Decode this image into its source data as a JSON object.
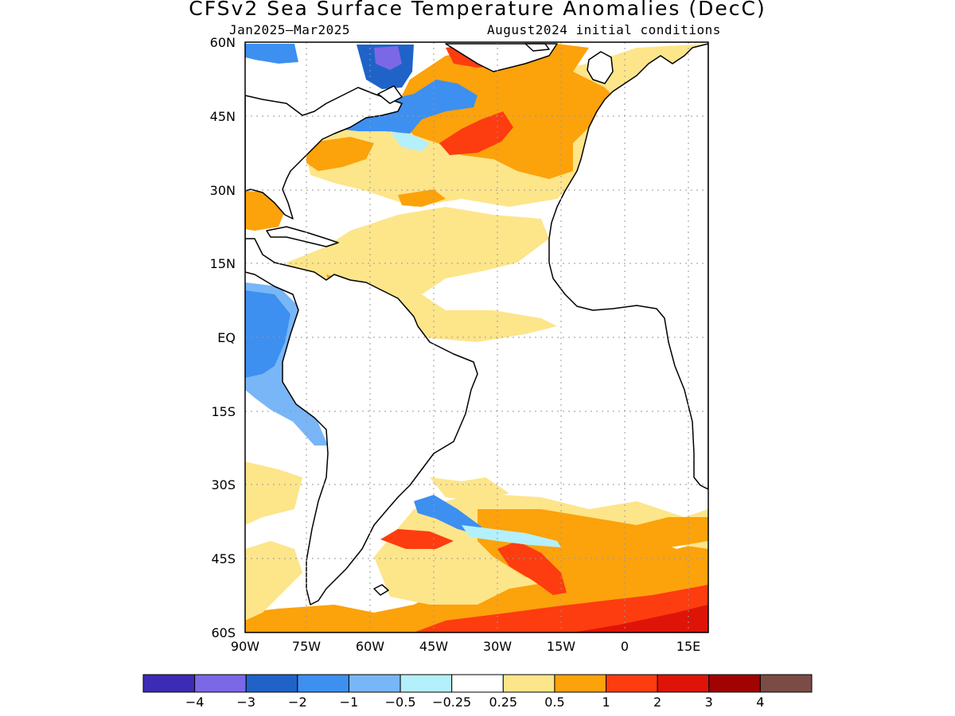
{
  "title": "CFSv2 Sea Surface Temperature Anomalies (DecC)",
  "subtitle_left": "Jan2025–Mar2025",
  "subtitle_right": "August2024 initial conditions",
  "lat_ticks": [
    "60N",
    "45N",
    "30N",
    "15N",
    "EQ",
    "15S",
    "30S",
    "45S",
    "60S"
  ],
  "lon_ticks": [
    "90W",
    "75W",
    "60W",
    "45W",
    "30W",
    "15W",
    "0",
    "15E"
  ],
  "colorbar": {
    "colors": [
      "#3c2cb5",
      "#7b68e6",
      "#1f63c8",
      "#3d8ff0",
      "#78b6f7",
      "#b3f0fb",
      "#ffffff",
      "#fde58a",
      "#fca20b",
      "#fd3c0f",
      "#de1408",
      "#a10302",
      "#7b4c45"
    ],
    "labels": [
      "−4",
      "−3",
      "−2",
      "−1",
      "−0.5",
      "−0.25",
      "0.25",
      "0.5",
      "1",
      "2",
      "3",
      "4"
    ]
  },
  "colors": {
    "land": "#ffffff",
    "ocean_neutral": "#ffffff",
    "coast": "#000000",
    "grid": "#9a9a9a"
  }
}
